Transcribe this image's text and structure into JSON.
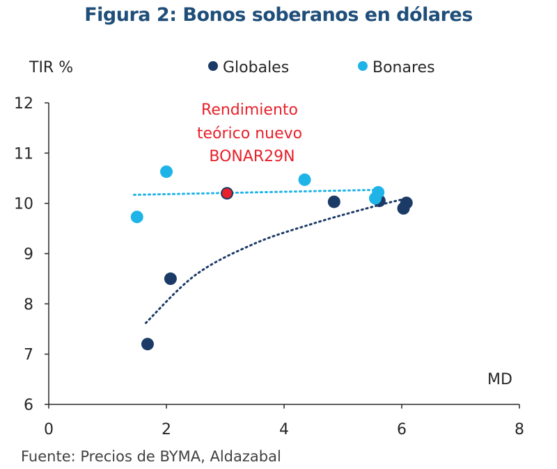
{
  "title": "Figura 2: Bonos soberanos en dólares",
  "source": "Fuente: Precios de BYMA, Aldazabal",
  "colors": {
    "globales": "#1b3a66",
    "bonares": "#1fb4e8",
    "highlight": "#e8202a",
    "axis": "#262626"
  },
  "chart_data": {
    "type": "scatter",
    "title": "Figura 2: Bonos soberanos en dólares",
    "xlabel": "MD",
    "ylabel": "TIR %",
    "xlim": [
      0,
      8
    ],
    "ylim": [
      6,
      12
    ],
    "x_ticks": [
      "0",
      "2",
      "4",
      "6",
      "8"
    ],
    "y_ticks": [
      "6",
      "7",
      "8",
      "9",
      "10",
      "11",
      "12"
    ],
    "grid": false,
    "legend_position": "top",
    "series": [
      {
        "name": "Globales",
        "points": [
          {
            "x": 1.68,
            "y": 7.2
          },
          {
            "x": 2.07,
            "y": 8.5
          },
          {
            "x": 3.03,
            "y": 10.2
          },
          {
            "x": 4.85,
            "y": 10.03
          },
          {
            "x": 5.62,
            "y": 10.05
          },
          {
            "x": 6.03,
            "y": 9.9
          },
          {
            "x": 6.08,
            "y": 10.01
          }
        ],
        "trendline": "logarithmic",
        "trendline_points": [
          [
            1.65,
            7.62
          ],
          [
            2.5,
            8.58
          ],
          [
            3.5,
            9.2
          ],
          [
            4.5,
            9.6
          ],
          [
            5.5,
            9.93
          ],
          [
            6.05,
            10.09
          ]
        ]
      },
      {
        "name": "Bonares",
        "points": [
          {
            "x": 1.5,
            "y": 9.73
          },
          {
            "x": 2.0,
            "y": 10.63
          },
          {
            "x": 4.35,
            "y": 10.47
          },
          {
            "x": 5.55,
            "y": 10.1
          },
          {
            "x": 5.6,
            "y": 10.22
          }
        ],
        "trendline": "linear",
        "trendline_points": [
          [
            1.45,
            10.17
          ],
          [
            5.65,
            10.27
          ]
        ]
      }
    ],
    "annotations": [
      {
        "text": "Rendimiento teórico nuevo BONAR29N",
        "lines": [
          "Rendimiento",
          "teórico nuevo",
          "BONAR29N"
        ],
        "x": 3.03,
        "y": 10.2
      }
    ]
  }
}
